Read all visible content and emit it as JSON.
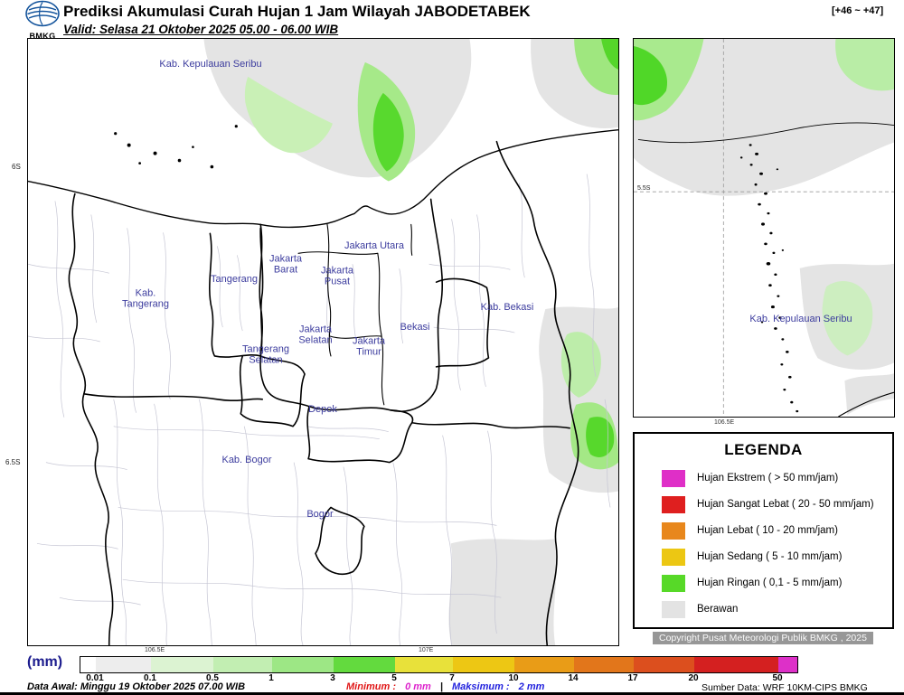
{
  "header": {
    "logo_text": "BMKG",
    "title": "Prediksi Akumulasi Curah Hujan 1 Jam Wilayah JABODETABEK",
    "valid": "Valid: Selasa 21 Oktober 2025 05.00 - 06.00 WIB",
    "frame_range": "[+46 ~ +47]"
  },
  "main_map": {
    "labels": [
      "Kab. Kepulauan Seribu",
      "Tangerang",
      "Kab. Tangerang",
      "Jakarta Barat",
      "Jakarta Utara",
      "Jakarta Pusat",
      "Jakarta Selatan",
      "Jakarta Timur",
      "Tangerang Selatan",
      "Bekasi",
      "Kab. Bekasi",
      "Depok",
      "Kab. Bogor",
      "Bogor"
    ],
    "lat_ticks": [
      "6S",
      "6.5S"
    ],
    "lon_ticks": [
      "106.5E",
      "107E"
    ]
  },
  "inset_map": {
    "label": "Kab. Kepulauan Seribu",
    "lat_tick": "5.5S",
    "lon_tick": "106.5E"
  },
  "legend": {
    "title": "LEGENDA",
    "items": [
      {
        "color": "#df2fc7",
        "label": "Hujan Ekstrem ( > 50 mm/jam)"
      },
      {
        "color": "#df1f1f",
        "label": "Hujan Sangat Lebat ( 20 - 50 mm/jam)"
      },
      {
        "color": "#e8871c",
        "label": "Hujan Lebat ( 10 - 20 mm/jam)"
      },
      {
        "color": "#ecc713",
        "label": "Hujan Sedang ( 5 - 10 mm/jam)"
      },
      {
        "color": "#57d928",
        "label": "Hujan Ringan ( 0,1 - 5 mm/jam)"
      },
      {
        "color": "#e3e3e3",
        "label": "Berawan"
      }
    ]
  },
  "copyright": "Copyright Pusat Meteorologi Publik BMKG , 2025",
  "colorbar": {
    "unit": "(mm)",
    "ticks": [
      "0.01",
      "0.1",
      "0.5",
      "1",
      "3",
      "5",
      "7",
      "10",
      "14",
      "17",
      "20",
      "50"
    ],
    "colors": [
      "#ffffff",
      "#ededed",
      "#dcf3d2",
      "#c2eeb2",
      "#9de785",
      "#63da3e",
      "#e8e13a",
      "#edc714",
      "#e99c17",
      "#e2761b",
      "#dc4f1e",
      "#d42020",
      "#dd30c8"
    ]
  },
  "footer": {
    "data_awal": "Data Awal: Minggu 19 Oktober 2025 07.00 WIB",
    "minimum_label": "Minimum :",
    "minimum_value": "0 mm",
    "separator": "|",
    "maksimum_label": "Maksimum :",
    "maksimum_value": "2 mm",
    "sumber": "Sumber Data: WRF 10KM-CIPS BMKG"
  }
}
